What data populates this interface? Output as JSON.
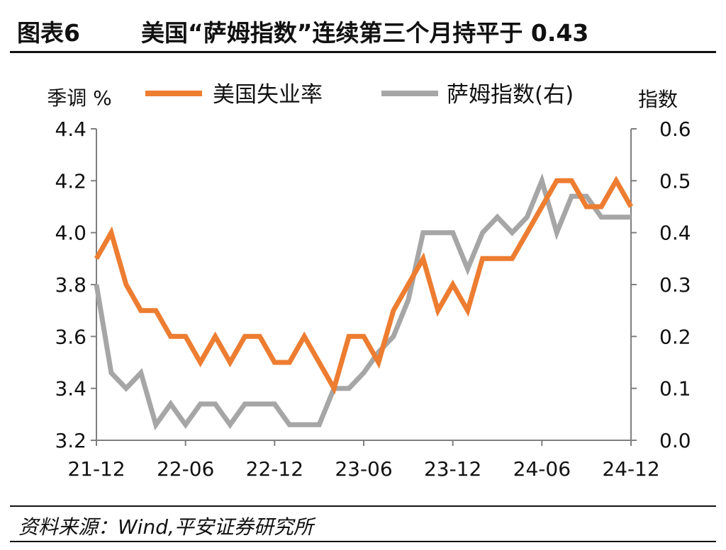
{
  "header": {
    "figure_number": "图表6",
    "title": "美国“萨姆指数”连续第三个月持平于 0.43"
  },
  "chart_data": {
    "type": "line",
    "left_axis_unit": "季调 %",
    "right_axis_unit": "指数",
    "x_tick_labels": [
      "21-12",
      "22-06",
      "22-12",
      "23-06",
      "23-12",
      "24-06",
      "24-12"
    ],
    "x": [
      "21-12",
      "22-01",
      "22-02",
      "22-03",
      "22-04",
      "22-05",
      "22-06",
      "22-07",
      "22-08",
      "22-09",
      "22-10",
      "22-11",
      "22-12",
      "23-01",
      "23-02",
      "23-03",
      "23-04",
      "23-05",
      "23-06",
      "23-07",
      "23-08",
      "23-09",
      "23-10",
      "23-11",
      "23-12",
      "24-01",
      "24-02",
      "24-03",
      "24-04",
      "24-05",
      "24-06",
      "24-07",
      "24-08",
      "24-09",
      "24-10",
      "24-11",
      "24-12"
    ],
    "left_axis": {
      "min": 3.2,
      "max": 4.4,
      "ticks": [
        "3.2",
        "3.4",
        "3.6",
        "3.8",
        "4.0",
        "4.2",
        "4.4"
      ]
    },
    "right_axis": {
      "min": 0.0,
      "max": 0.6,
      "ticks": [
        "0.0",
        "0.1",
        "0.2",
        "0.3",
        "0.4",
        "0.5",
        "0.6"
      ]
    },
    "series": [
      {
        "name": "美国失业率",
        "axis": "left",
        "color": "#ED7D31",
        "values": [
          3.9,
          4.0,
          3.8,
          3.7,
          3.7,
          3.6,
          3.6,
          3.5,
          3.6,
          3.5,
          3.6,
          3.6,
          3.5,
          3.5,
          3.6,
          3.5,
          3.4,
          3.6,
          3.6,
          3.5,
          3.7,
          3.8,
          3.9,
          3.7,
          3.8,
          3.7,
          3.9,
          3.9,
          3.9,
          4.0,
          4.1,
          4.2,
          4.2,
          4.1,
          4.1,
          4.2,
          4.1
        ]
      },
      {
        "name": "萨姆指数(右)",
        "axis": "right",
        "color": "#A6A6A6",
        "values": [
          0.3,
          0.13,
          0.1,
          0.13,
          0.03,
          0.07,
          0.03,
          0.07,
          0.07,
          0.03,
          0.07,
          0.07,
          0.07,
          0.03,
          0.03,
          0.03,
          0.1,
          0.1,
          0.13,
          0.17,
          0.2,
          0.27,
          0.4,
          0.4,
          0.4,
          0.33,
          0.4,
          0.43,
          0.4,
          0.43,
          0.5,
          0.4,
          0.47,
          0.47,
          0.43,
          0.43,
          0.43
        ]
      }
    ],
    "legend_position": "top",
    "grid": false
  },
  "footer": {
    "source": "资料来源：Wind,平安证券研究所"
  }
}
